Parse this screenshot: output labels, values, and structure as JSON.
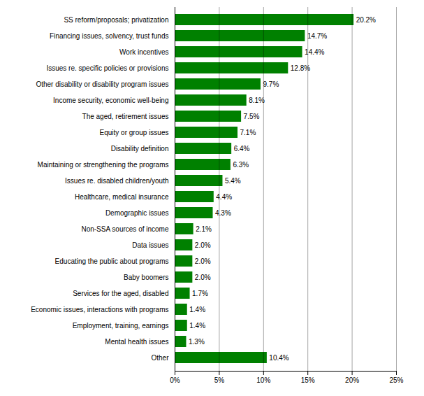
{
  "chart_data": {
    "type": "bar",
    "orientation": "horizontal",
    "categories": [
      "SS reform/proposals; privatization",
      "Financing issues, solvency, trust funds",
      "Work incentives",
      "Issues re. specific policies or provisions",
      "Other disability or disability program issues",
      "Income security, economic well-being",
      "The aged, retirement issues",
      "Equity or group issues",
      "Disability definition",
      "Maintaining or strengthening the programs",
      "Issues re. disabled children/youth",
      "Healthcare, medical insurance",
      "Demographic issues",
      "Non-SSA sources of income",
      "Data issues",
      "Educating the public about programs",
      "Baby boomers",
      "Services for the aged, disabled",
      "Economic issues, interactions with programs",
      "Employment, training, earnings",
      "Mental health issues",
      "Other"
    ],
    "values": [
      20.2,
      14.7,
      14.4,
      12.8,
      9.7,
      8.1,
      7.5,
      7.1,
      6.4,
      6.3,
      5.4,
      4.4,
      4.3,
      2.1,
      2.0,
      2.0,
      2.0,
      1.7,
      1.4,
      1.4,
      1.3,
      10.4
    ],
    "value_labels": [
      "20.2%",
      "14.7%",
      "14.4%",
      "12.8%",
      "9.7%",
      "8.1%",
      "7.5%",
      "7.1%",
      "6.4%",
      "6.3%",
      "5.4%",
      "4.4%",
      "4.3%",
      "2.1%",
      "2.0%",
      "2.0%",
      "2.0%",
      "1.7%",
      "1.4%",
      "1.4%",
      "1.3%",
      "10.4%"
    ],
    "data_labels": true,
    "color": "#008000",
    "xlim": [
      0,
      25
    ],
    "xticks": [
      {
        "value": 0,
        "label": "0%"
      },
      {
        "value": 5,
        "label": "5%"
      },
      {
        "value": 10,
        "label": "10%"
      },
      {
        "value": 15,
        "label": "15%"
      },
      {
        "value": 20,
        "label": "20%"
      },
      {
        "value": 25,
        "label": "25%"
      }
    ],
    "grid": true
  }
}
